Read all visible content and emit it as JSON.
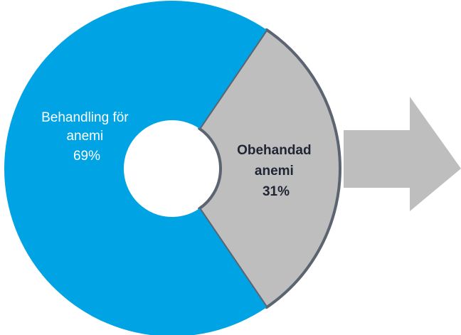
{
  "chart_data": {
    "type": "pie",
    "variant": "donut",
    "slices": [
      {
        "label_line1": "Behandling för",
        "label_line2": "anemi",
        "value": 69,
        "value_text": "69%",
        "color": "#00a3e4",
        "text_color": "#ffffff",
        "bold": false
      },
      {
        "label_line1": "Obehandad",
        "label_line2": "anemi",
        "value": 31,
        "value_text": "31%",
        "color": "#bebebe",
        "text_color": "#1f2533",
        "bold": true,
        "outline": "#5b6470"
      }
    ],
    "arrow": {
      "color": "#bebebe",
      "direction": "right"
    }
  }
}
